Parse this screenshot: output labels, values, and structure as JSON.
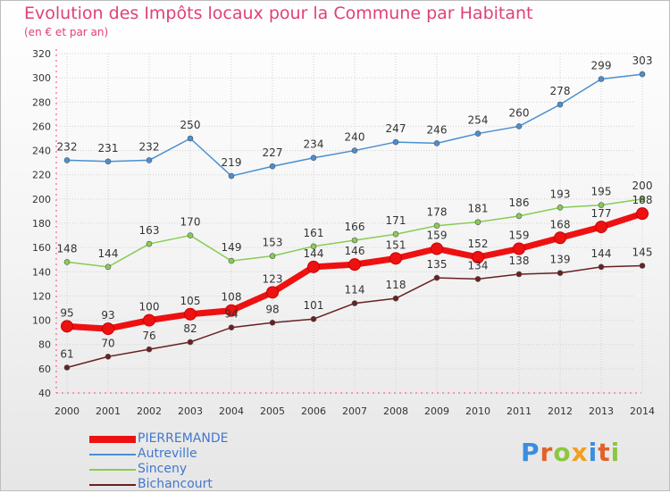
{
  "header": {
    "title": "Evolution des Impôts locaux pour la Commune par Habitant",
    "subtitle": "(en € et par an)"
  },
  "logo": {
    "text": "Proxiti",
    "colors": [
      "#3a8ee0",
      "#e0622a",
      "#8ec63f",
      "#f0a020"
    ]
  },
  "chart_data": {
    "type": "line",
    "title": "Evolution des Impôts locaux pour la Commune par Habitant",
    "subtitle": "(en € et par an)",
    "x": [
      "2000",
      "2001",
      "2002",
      "2003",
      "2004",
      "2005",
      "2006",
      "2007",
      "2008",
      "2009",
      "2010",
      "2011",
      "2012",
      "2013",
      "2014"
    ],
    "ylim": [
      40,
      320
    ],
    "yticks": [
      40,
      60,
      80,
      100,
      120,
      140,
      160,
      180,
      200,
      220,
      240,
      260,
      280,
      300,
      320
    ],
    "grid": true,
    "legend_position": "bottom-left",
    "series": [
      {
        "name": "PIERREMANDE",
        "color": "#ee1111",
        "emphasis": true,
        "values": [
          95,
          93,
          100,
          105,
          108,
          123,
          144,
          146,
          151,
          159,
          152,
          159,
          168,
          177,
          188
        ]
      },
      {
        "name": "Autreville",
        "color": "#4a8fd0",
        "values": [
          232,
          231,
          232,
          250,
          219,
          227,
          234,
          240,
          247,
          246,
          254,
          260,
          278,
          299,
          303
        ]
      },
      {
        "name": "Sinceny",
        "color": "#88cc55",
        "values": [
          148,
          144,
          163,
          170,
          149,
          153,
          161,
          166,
          171,
          178,
          181,
          186,
          193,
          195,
          200
        ]
      },
      {
        "name": "Bichancourt",
        "color": "#6a2020",
        "values": [
          61,
          70,
          76,
          82,
          94,
          98,
          101,
          114,
          118,
          135,
          134,
          138,
          139,
          144,
          145
        ]
      }
    ]
  }
}
